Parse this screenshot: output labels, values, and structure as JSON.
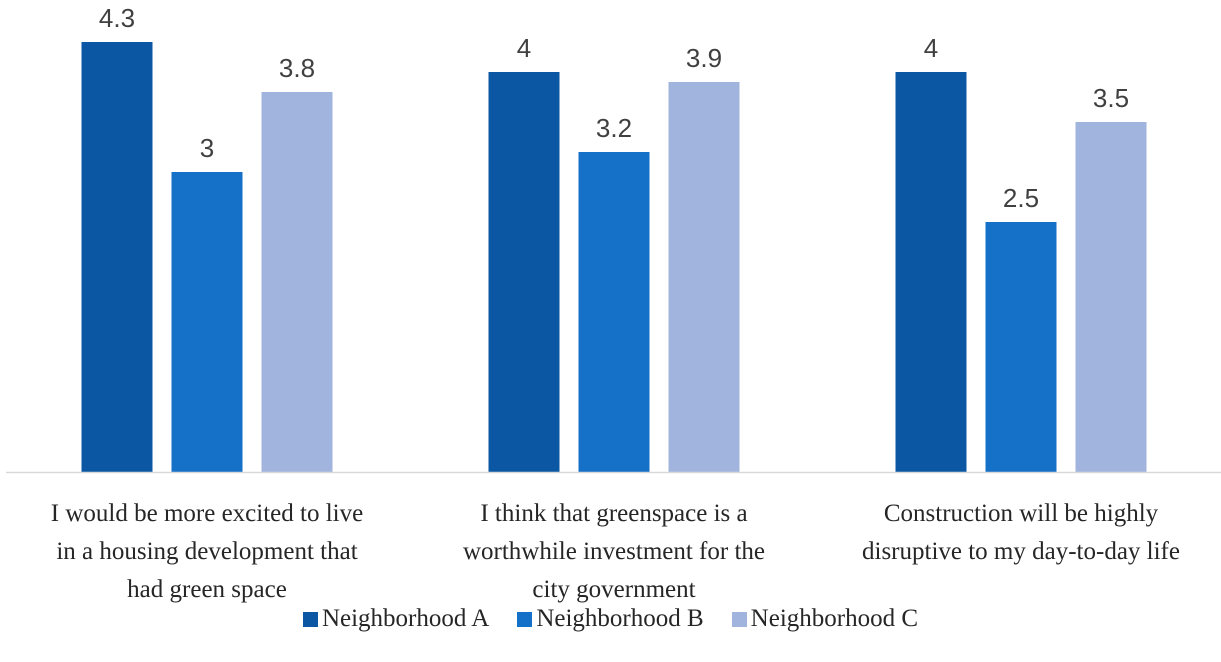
{
  "chart_data": {
    "type": "bar",
    "categories": [
      "I would be more excited to live in a housing development that had green space",
      "I think that greenspace is a worthwhile investment for the city government",
      "Construction will be highly disruptive to my day-to-day life"
    ],
    "category_lines": [
      [
        "I would be more excited to live",
        "in a housing development that",
        "had green space"
      ],
      [
        "I think that greenspace is a",
        "worthwhile investment for the",
        "city government"
      ],
      [
        "Construction will be highly",
        "disruptive to my day-to-day life"
      ]
    ],
    "series": [
      {
        "name": "Neighborhood A",
        "values": [
          4.3,
          4,
          4
        ],
        "color": "#0b57a4"
      },
      {
        "name": "Neighborhood B",
        "values": [
          3,
          3.2,
          2.5
        ],
        "color": "#1570c8"
      },
      {
        "name": "Neighborhood C",
        "values": [
          3.8,
          3.9,
          3.5
        ],
        "color": "#a1b4de"
      }
    ],
    "ylim": [
      0,
      4.5
    ],
    "grid": false,
    "legend_position": "bottom",
    "axis_color": "#d9d9d9"
  }
}
